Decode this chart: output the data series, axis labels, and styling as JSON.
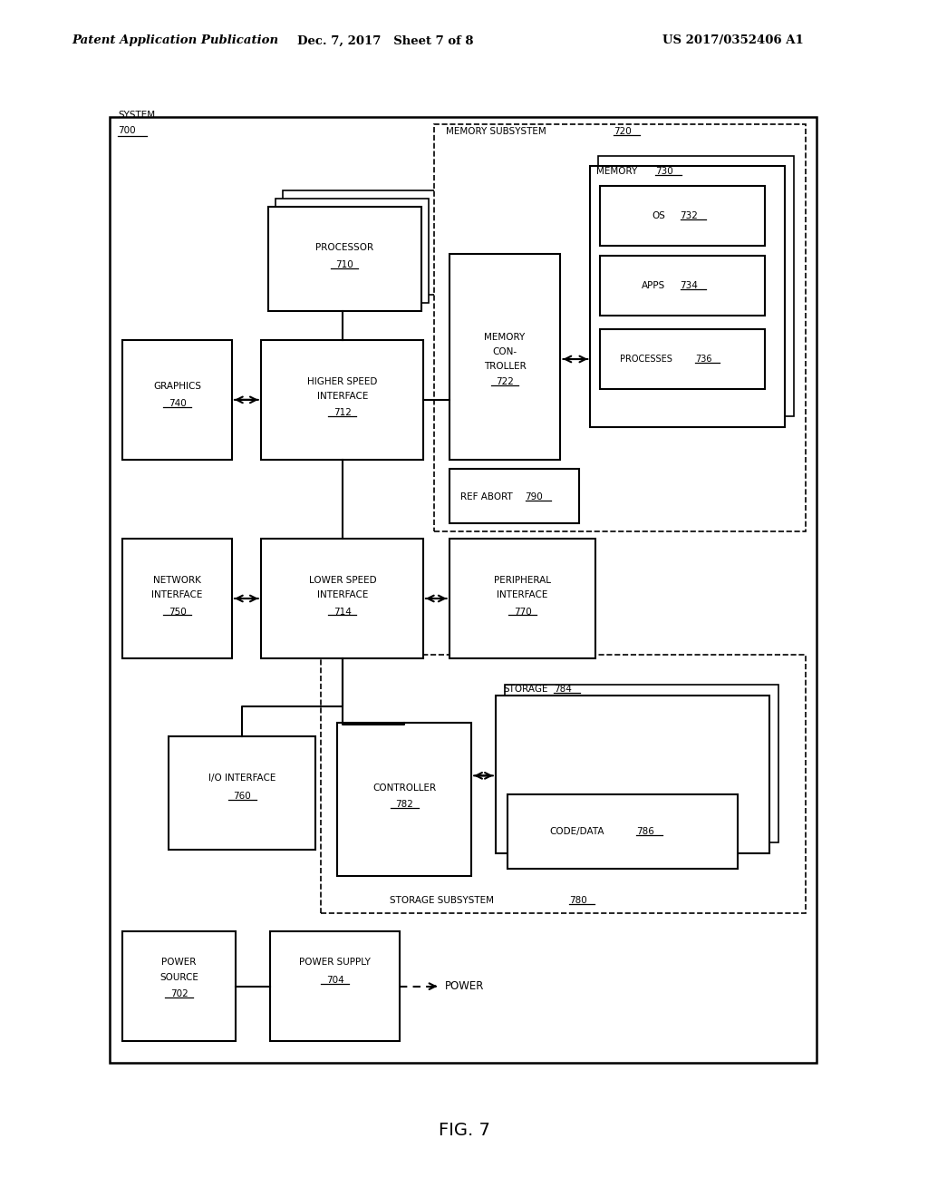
{
  "header_left": "Patent Application Publication",
  "header_mid": "Dec. 7, 2017   Sheet 7 of 8",
  "header_right": "US 2017/0352406 A1",
  "figure_label": "FIG. 7",
  "bg_color": "#ffffff"
}
